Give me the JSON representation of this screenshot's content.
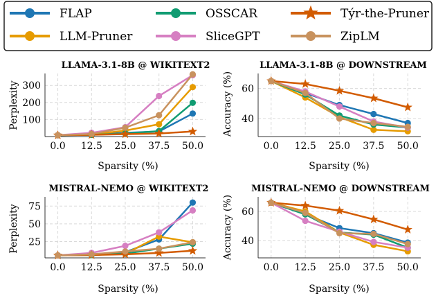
{
  "legend": [
    {
      "name": "FLAP",
      "color": "#1f77b4",
      "marker": "circle"
    },
    {
      "name": "LLM-Pruner",
      "color": "#e69b00",
      "marker": "circle"
    },
    {
      "name": "OSSCAR",
      "color": "#119c72",
      "marker": "circle"
    },
    {
      "name": "SliceGPT",
      "color": "#d67fc2",
      "marker": "circle"
    },
    {
      "name": "Týr-the-Pruner",
      "color": "#d25b00",
      "marker": "star"
    },
    {
      "name": "ZipLM",
      "color": "#c8925e",
      "marker": "circle"
    }
  ],
  "chart_data": [
    {
      "type": "line",
      "title": "LLAMA-3.1-8B @ WIKITEXT2",
      "xlabel": "Sparsity (%)",
      "ylabel": "Perplexity",
      "x": [
        "0.0",
        "12.5",
        "25.0",
        "37.5",
        "50.0"
      ],
      "yticks": [
        "100",
        "200",
        "300"
      ],
      "ylim": [
        0,
        370
      ],
      "grid": true,
      "series": [
        {
          "name": "FLAP",
          "values": [
            8,
            12,
            22,
            30,
            135
          ]
        },
        {
          "name": "LLM-Pruner",
          "values": [
            8,
            12,
            35,
            72,
            290
          ]
        },
        {
          "name": "OSSCAR",
          "values": [
            8,
            10,
            18,
            32,
            198
          ]
        },
        {
          "name": "SliceGPT",
          "values": [
            8,
            22,
            55,
            238,
            360
          ]
        },
        {
          "name": "Týr-the-Pruner",
          "values": [
            8,
            10,
            14,
            18,
            30
          ]
        },
        {
          "name": "ZipLM",
          "values": [
            8,
            15,
            52,
            125,
            365
          ]
        }
      ]
    },
    {
      "type": "line",
      "title": "LLAMA-3.1-8B @ DOWNSTREAM",
      "xlabel": "Sparsity (%)",
      "ylabel": "Accuracy (%)",
      "x": [
        "0.0",
        "12.5",
        "25.0",
        "37.5",
        "50.0"
      ],
      "yticks": [
        "40",
        "60"
      ],
      "ylim": [
        28,
        70
      ],
      "grid": true,
      "series": [
        {
          "name": "FLAP",
          "values": [
            65,
            57,
            49,
            43,
            37
          ]
        },
        {
          "name": "LLM-Pruner",
          "values": [
            65,
            54,
            41,
            32.5,
            31.5
          ]
        },
        {
          "name": "OSSCAR",
          "values": [
            65,
            56,
            42,
            36,
            34
          ]
        },
        {
          "name": "SliceGPT",
          "values": [
            65,
            58,
            48,
            38,
            34
          ]
        },
        {
          "name": "Týr-the-Pruner",
          "values": [
            65,
            63,
            58.5,
            53.5,
            47.5
          ]
        },
        {
          "name": "ZipLM",
          "values": [
            65,
            57,
            40,
            37,
            34.5
          ]
        }
      ]
    },
    {
      "type": "line",
      "title": "MISTRAL-NEMO @ WIKITEXT2",
      "xlabel": "Sparsity (%)",
      "ylabel": "Perplexity",
      "x": [
        "0.0",
        "12.5",
        "25.0",
        "37.5",
        "50.0"
      ],
      "yticks": [
        "25",
        "50",
        "75"
      ],
      "ylim": [
        2,
        88
      ],
      "grid": true,
      "series": [
        {
          "name": "FLAP",
          "values": [
            5.5,
            7,
            10,
            28,
            80
          ]
        },
        {
          "name": "LLM-Pruner",
          "values": [
            5.5,
            6,
            8,
            32,
            24
          ]
        },
        {
          "name": "OSSCAR",
          "values": [
            5.5,
            6,
            8,
            15,
            22
          ]
        },
        {
          "name": "SliceGPT",
          "values": [
            5.5,
            9,
            19,
            38,
            69
          ]
        },
        {
          "name": "Týr-the-Pruner",
          "values": [
            5.5,
            6,
            7,
            9,
            12
          ]
        },
        {
          "name": "ZipLM",
          "values": [
            5.5,
            7,
            11,
            15,
            24
          ]
        }
      ]
    },
    {
      "type": "line",
      "title": "MISTRAL-NEMO @ DOWNSTREAM",
      "xlabel": "Sparsity (%)",
      "ylabel": "Accuracy (%)",
      "x": [
        "0.0",
        "12.5",
        "25.0",
        "37.5",
        "50.0"
      ],
      "yticks": [
        "40",
        "60"
      ],
      "ylim": [
        28,
        70
      ],
      "grid": true,
      "series": [
        {
          "name": "FLAP",
          "values": [
            66,
            58,
            48.5,
            45,
            38.5
          ]
        },
        {
          "name": "LLM-Pruner",
          "values": [
            66,
            60,
            45.5,
            37,
            32.5
          ]
        },
        {
          "name": "OSSCAR",
          "values": [
            66,
            58,
            45.5,
            44,
            35
          ]
        },
        {
          "name": "SliceGPT",
          "values": [
            66,
            53.5,
            46,
            39,
            35
          ]
        },
        {
          "name": "Týr-the-Pruner",
          "values": [
            66,
            64,
            60.5,
            54.5,
            47.5
          ]
        },
        {
          "name": "ZipLM",
          "values": [
            66,
            59,
            45,
            44.5,
            37.5
          ]
        }
      ]
    }
  ]
}
